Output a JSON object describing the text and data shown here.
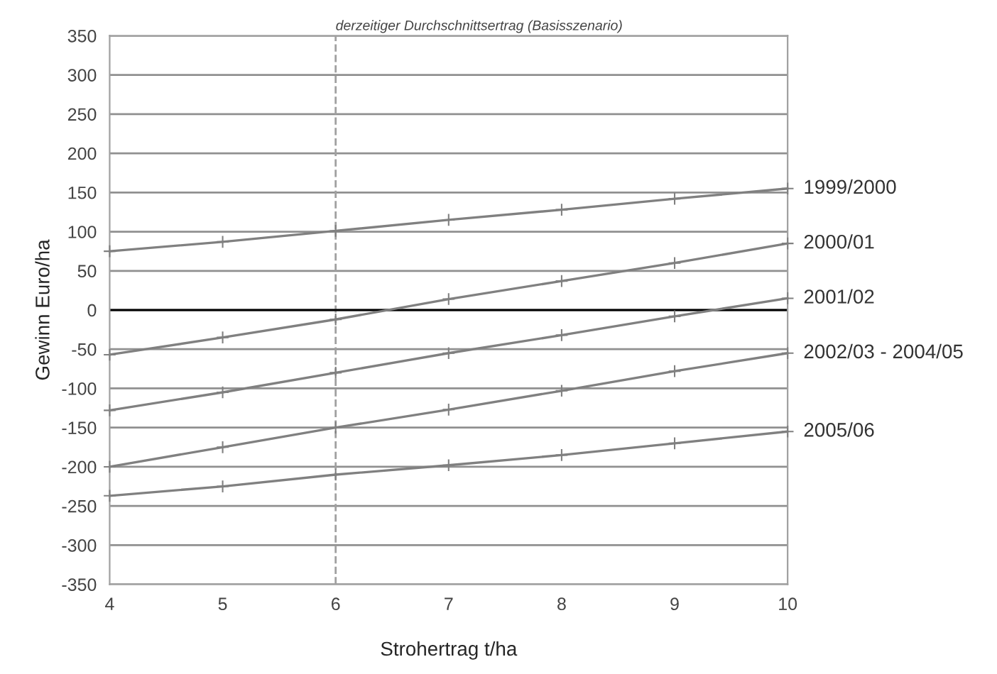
{
  "chart_data": {
    "type": "line",
    "xlabel": "Strohertrag t/ha",
    "ylabel": "Gewinn Euro/ha",
    "x": [
      4,
      5,
      6,
      7,
      8,
      9,
      10
    ],
    "series": [
      {
        "name": "1999/2000",
        "color": "#808080",
        "values": [
          75,
          87,
          101,
          115,
          128,
          142,
          155
        ]
      },
      {
        "name": "2000/01",
        "color": "#808080",
        "values": [
          -57,
          -35,
          -12,
          14,
          37,
          60,
          85
        ]
      },
      {
        "name": "2001/02",
        "color": "#808080",
        "values": [
          -128,
          -105,
          -80,
          -55,
          -32,
          -8,
          15
        ]
      },
      {
        "name": "2002/03 - 2004/05",
        "color": "#808080",
        "values": [
          -200,
          -175,
          -150,
          -127,
          -103,
          -78,
          -55
        ]
      },
      {
        "name": "2005/06",
        "color": "#808080",
        "values": [
          -237,
          -225,
          -210,
          -198,
          -185,
          -170,
          -155
        ]
      }
    ],
    "xlim": [
      4,
      10
    ],
    "xticks": [
      4,
      5,
      6,
      7,
      8,
      9,
      10
    ],
    "ylim": [
      -350,
      350
    ],
    "yticks": [
      -350,
      -300,
      -250,
      -200,
      -150,
      -100,
      -50,
      0,
      50,
      100,
      150,
      200,
      250,
      300,
      350
    ],
    "ref_lines": [
      {
        "axis": "x",
        "value": 6,
        "label": "derzeitiger Durchschnittsertrag (Basisszenario)",
        "color": "#a0a0a0",
        "line_style": "dashed"
      },
      {
        "axis": "y",
        "value": 0,
        "color": "#000000",
        "line_style": "solid"
      }
    ],
    "grid": "y",
    "legend": false,
    "marker": "cross",
    "line_style": "solid"
  }
}
